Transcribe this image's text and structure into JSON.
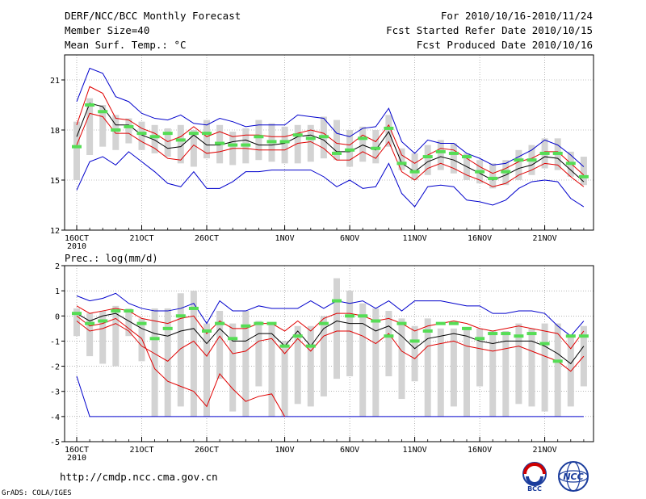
{
  "header": {
    "title": "DERF/NCC/BCC Monthly Forecast",
    "member_size": "Member Size=40",
    "variable": "Mean Surf. Temp.: °C",
    "forecast_range": "For 2010/10/16-2010/11/24",
    "start_date": "Fcst Started Refer Date 2010/10/15",
    "produced_date": "Fcst Produced Date 2010/10/16"
  },
  "footer": {
    "url": "http://cmdp.ncc.cma.gov.cn",
    "credit": "GrADS: COLA/IGES",
    "logo_left_text": "BCC",
    "logo_right_text": "NCC"
  },
  "colors": {
    "box": "#d3d3d3",
    "mean": "#000000",
    "spread": "#e00000",
    "extreme": "#0000cc",
    "marker": "#55dd55",
    "grid": "#888888"
  },
  "chart_data": [
    {
      "type": "box",
      "title": "Mean Surf. Temp.: °C",
      "xlabel": "",
      "ylabel": "",
      "ylim": [
        12,
        22.5
      ],
      "yticks": [
        12,
        15,
        18,
        21
      ],
      "xticks": [
        {
          "day": 0,
          "label": "16OCT",
          "sub": "2010"
        },
        {
          "day": 5,
          "label": "21OCT"
        },
        {
          "day": 10,
          "label": "26OCT"
        },
        {
          "day": 16,
          "label": "1NOV"
        },
        {
          "day": 21,
          "label": "6NOV"
        },
        {
          "day": 26,
          "label": "11NOV"
        },
        {
          "day": 31,
          "label": "16NOV"
        },
        {
          "day": 36,
          "label": "21NOV"
        }
      ],
      "days": [
        0,
        1,
        2,
        3,
        4,
        5,
        6,
        7,
        8,
        9,
        10,
        11,
        12,
        13,
        14,
        15,
        16,
        17,
        18,
        19,
        20,
        21,
        22,
        23,
        24,
        25,
        26,
        27,
        28,
        29,
        30,
        31,
        32,
        33,
        34,
        35,
        36,
        37,
        38,
        39
      ],
      "box_low": [
        15.0,
        16.5,
        17.0,
        16.8,
        17.2,
        16.8,
        16.6,
        16.4,
        16.0,
        15.8,
        16.3,
        16.0,
        15.9,
        16.0,
        16.2,
        16.1,
        16.0,
        16.0,
        16.1,
        16.3,
        16.2,
        15.8,
        16.1,
        16.0,
        17.0,
        15.6,
        15.0,
        15.3,
        15.6,
        15.4,
        15.0,
        14.8,
        14.5,
        14.7,
        15.0,
        15.3,
        15.7,
        15.6,
        15.2,
        14.7
      ],
      "box_high": [
        18.5,
        19.9,
        19.5,
        18.9,
        18.7,
        18.5,
        18.3,
        18.1,
        18.3,
        18.0,
        18.6,
        18.3,
        17.9,
        18.1,
        18.6,
        18.4,
        18.2,
        18.3,
        18.3,
        18.8,
        18.6,
        18.0,
        18.2,
        18.0,
        18.9,
        16.9,
        16.6,
        17.1,
        17.4,
        17.2,
        16.6,
        16.2,
        16.0,
        16.2,
        16.8,
        17.1,
        17.5,
        17.5,
        16.7,
        16.4
      ],
      "max": [
        19.7,
        21.7,
        21.4,
        20.0,
        19.7,
        19.0,
        18.7,
        18.6,
        18.9,
        18.4,
        18.3,
        18.7,
        18.5,
        18.2,
        18.3,
        18.3,
        18.3,
        18.9,
        18.8,
        18.7,
        17.8,
        17.6,
        18.1,
        18.2,
        19.3,
        17.3,
        16.6,
        17.4,
        17.2,
        17.2,
        16.6,
        16.3,
        15.9,
        16.0,
        16.4,
        16.8,
        17.4,
        17.1,
        16.5,
        15.8
      ],
      "upper": [
        18.3,
        20.6,
        20.2,
        18.7,
        18.6,
        18.1,
        17.8,
        17.3,
        17.6,
        18.2,
        17.6,
        17.9,
        17.6,
        17.7,
        17.7,
        17.6,
        17.6,
        17.8,
        18.0,
        17.8,
        17.2,
        17.1,
        17.7,
        17.3,
        18.3,
        16.5,
        16.0,
        16.5,
        16.9,
        16.8,
        16.3,
        15.8,
        15.4,
        15.7,
        16.1,
        16.3,
        16.7,
        16.7,
        16.0,
        15.3
      ],
      "mean": [
        17.6,
        19.6,
        19.4,
        18.3,
        18.3,
        17.7,
        17.4,
        16.9,
        17.0,
        17.7,
        17.1,
        17.1,
        17.3,
        17.4,
        17.1,
        17.1,
        17.2,
        17.6,
        17.7,
        17.4,
        16.7,
        16.7,
        17.1,
        16.8,
        17.9,
        16.0,
        15.5,
        16.1,
        16.4,
        16.2,
        15.8,
        15.4,
        15.0,
        15.3,
        15.7,
        15.9,
        16.4,
        16.3,
        15.6,
        14.9
      ],
      "lower": [
        17.1,
        19.0,
        18.8,
        17.8,
        17.8,
        17.3,
        16.9,
        16.3,
        16.2,
        17.1,
        16.6,
        16.7,
        16.9,
        16.9,
        16.8,
        16.8,
        16.8,
        17.2,
        17.3,
        16.9,
        16.2,
        16.2,
        16.7,
        16.3,
        17.3,
        15.5,
        15.0,
        15.7,
        16.0,
        15.7,
        15.3,
        15.0,
        14.6,
        14.8,
        15.3,
        15.6,
        16.0,
        15.9,
        15.2,
        14.6
      ],
      "min": [
        14.4,
        16.1,
        16.4,
        15.9,
        16.7,
        16.1,
        15.5,
        14.8,
        14.6,
        15.5,
        14.5,
        14.5,
        14.9,
        15.5,
        15.5,
        15.6,
        15.6,
        15.6,
        15.6,
        15.2,
        14.6,
        15.0,
        14.5,
        14.6,
        16.0,
        14.2,
        13.4,
        14.6,
        14.7,
        14.6,
        13.8,
        13.7,
        13.5,
        13.8,
        14.5,
        14.9,
        15.0,
        14.9,
        13.9,
        13.4
      ],
      "marker": [
        17.0,
        19.5,
        19.1,
        18.0,
        18.2,
        17.8,
        17.6,
        17.8,
        17.4,
        17.8,
        17.8,
        17.2,
        17.1,
        17.1,
        17.6,
        17.3,
        17.3,
        17.7,
        17.5,
        17.6,
        16.6,
        16.8,
        17.5,
        16.9,
        18.1,
        16.0,
        15.5,
        16.4,
        16.7,
        16.6,
        16.4,
        15.5,
        15.1,
        15.5,
        16.2,
        16.2,
        16.6,
        16.6,
        16.0,
        15.2
      ]
    },
    {
      "type": "box",
      "title": "Prec.: log(mm/d)",
      "xlabel": "",
      "ylabel": "",
      "ylim": [
        -5,
        2
      ],
      "yticks": [
        -5,
        -4,
        -3,
        -2,
        -1,
        0,
        1,
        2
      ],
      "xticks": [
        {
          "day": 0,
          "label": "16OCT",
          "sub": "2010"
        },
        {
          "day": 5,
          "label": "21OCT"
        },
        {
          "day": 10,
          "label": "26OCT"
        },
        {
          "day": 16,
          "label": "1NOV"
        },
        {
          "day": 21,
          "label": "6NOV"
        },
        {
          "day": 26,
          "label": "11NOV"
        },
        {
          "day": 31,
          "label": "16NOV"
        },
        {
          "day": 36,
          "label": "21NOV"
        }
      ],
      "days": [
        0,
        1,
        2,
        3,
        4,
        5,
        6,
        7,
        8,
        9,
        10,
        11,
        12,
        13,
        14,
        15,
        16,
        17,
        18,
        19,
        20,
        21,
        22,
        23,
        24,
        25,
        26,
        27,
        28,
        29,
        30,
        31,
        32,
        33,
        34,
        35,
        36,
        37,
        38,
        39
      ],
      "box_low": [
        -0.8,
        -1.6,
        -1.9,
        -2.0,
        -0.8,
        -1.8,
        -4.0,
        -4.0,
        -3.6,
        -4.0,
        -4.0,
        -2.5,
        -3.8,
        -4.0,
        -2.8,
        -4.0,
        -4.0,
        -3.5,
        -3.6,
        -3.2,
        -2.5,
        -2.4,
        -4.0,
        -4.0,
        -2.4,
        -3.3,
        -2.6,
        -4.0,
        -4.0,
        -3.6,
        -4.0,
        -2.8,
        -4.0,
        -4.0,
        -3.5,
        -3.6,
        -3.8,
        -4.0,
        -3.6,
        -2.8
      ],
      "box_high": [
        0.3,
        0.1,
        0.2,
        0.4,
        0.3,
        -0.1,
        0.3,
        0.3,
        0.9,
        1.0,
        -0.3,
        0.2,
        -0.3,
        0.2,
        -0.2,
        -0.3,
        -1.0,
        -0.4,
        -0.4,
        0.0,
        1.5,
        1.0,
        0.5,
        0.3,
        0.2,
        -0.1,
        -0.4,
        -0.1,
        -0.5,
        -0.5,
        -0.5,
        -0.5,
        -0.6,
        -0.6,
        -0.3,
        -0.5,
        -0.3,
        -0.3,
        -0.8,
        -0.4
      ],
      "max": [
        0.8,
        0.6,
        0.7,
        0.9,
        0.5,
        0.3,
        0.2,
        0.2,
        0.3,
        0.5,
        -0.3,
        0.6,
        0.2,
        0.2,
        0.4,
        0.3,
        0.3,
        0.3,
        0.6,
        0.3,
        0.6,
        0.5,
        0.6,
        0.3,
        0.6,
        0.2,
        0.6,
        0.6,
        0.6,
        0.5,
        0.4,
        0.4,
        0.1,
        0.1,
        0.2,
        0.2,
        0.1,
        -0.4,
        -0.8,
        -0.2
      ],
      "upper": [
        0.4,
        0.1,
        0.2,
        0.3,
        0.2,
        -0.1,
        -0.2,
        -0.3,
        -0.1,
        0.0,
        -0.7,
        -0.2,
        -0.5,
        -0.5,
        -0.3,
        -0.3,
        -0.6,
        -0.2,
        -0.6,
        -0.1,
        0.1,
        0.1,
        0.0,
        -0.2,
        -0.1,
        -0.3,
        -0.6,
        -0.4,
        -0.3,
        -0.2,
        -0.3,
        -0.5,
        -0.6,
        -0.5,
        -0.4,
        -0.5,
        -0.6,
        -0.7,
        -1.3,
        -0.6
      ],
      "mean": [
        0.1,
        -0.2,
        0.0,
        0.1,
        -0.2,
        -0.5,
        -0.7,
        -0.8,
        -0.6,
        -0.5,
        -1.1,
        -0.5,
        -1.0,
        -1.0,
        -0.7,
        -0.7,
        -1.2,
        -0.6,
        -1.2,
        -0.5,
        -0.2,
        -0.3,
        -0.3,
        -0.6,
        -0.4,
        -0.8,
        -1.3,
        -0.9,
        -0.8,
        -0.7,
        -0.8,
        -1.0,
        -1.1,
        -1.0,
        -1.0,
        -1.0,
        -1.2,
        -1.5,
        -1.9,
        -1.2
      ],
      "lower": [
        -0.2,
        -0.6,
        -0.5,
        -0.3,
        -0.6,
        -1.2,
        -1.5,
        -1.8,
        -1.3,
        -1.0,
        -1.6,
        -0.8,
        -1.5,
        -1.4,
        -1.0,
        -0.9,
        -1.5,
        -0.9,
        -1.4,
        -0.8,
        -0.6,
        -0.6,
        -0.8,
        -1.1,
        -0.7,
        -1.4,
        -1.7,
        -1.2,
        -1.1,
        -1.0,
        -1.2,
        -1.3,
        -1.4,
        -1.3,
        -1.2,
        -1.4,
        -1.6,
        -1.8,
        -2.2,
        -1.6
      ],
      "upper_path_low": [
        0.0,
        -0.4,
        -0.3,
        -0.1,
        -0.5,
        -0.9,
        -2.1,
        -2.6,
        -2.8,
        -3.0,
        -3.6,
        -2.3,
        -2.9,
        -3.4,
        -3.2,
        -3.1,
        -4.0
      ],
      "min": [
        -2.4,
        -4.0,
        -4.0,
        -4.0,
        -4.0,
        -4.0,
        -4.0,
        -4.0,
        -4.0,
        -4.0,
        -4.0,
        -4.0,
        -4.0,
        -4.0,
        -4.0,
        -4.0,
        -4.0,
        -4.0,
        -4.0,
        -4.0,
        -4.0,
        -4.0,
        -4.0,
        -4.0,
        -4.0,
        -4.0,
        -4.0,
        -4.0,
        -4.0,
        -4.0,
        -4.0,
        -4.0,
        -4.0,
        -4.0,
        -4.0,
        -4.0,
        -4.0,
        -4.0,
        -4.0,
        -4.0
      ],
      "marker": [
        0.1,
        -0.3,
        -0.2,
        0.2,
        0.2,
        -0.3,
        -0.9,
        -0.5,
        0.0,
        0.3,
        -0.6,
        -0.3,
        -0.9,
        -0.4,
        -0.3,
        -0.3,
        -1.2,
        -0.8,
        -1.2,
        -0.3,
        0.6,
        0.0,
        0.0,
        -0.2,
        -0.8,
        -0.3,
        -1.0,
        -0.6,
        -0.3,
        -0.3,
        -0.5,
        -0.9,
        -0.7,
        -0.7,
        -0.8,
        -0.7,
        -1.1,
        -1.8,
        -0.8,
        -0.8
      ]
    }
  ]
}
